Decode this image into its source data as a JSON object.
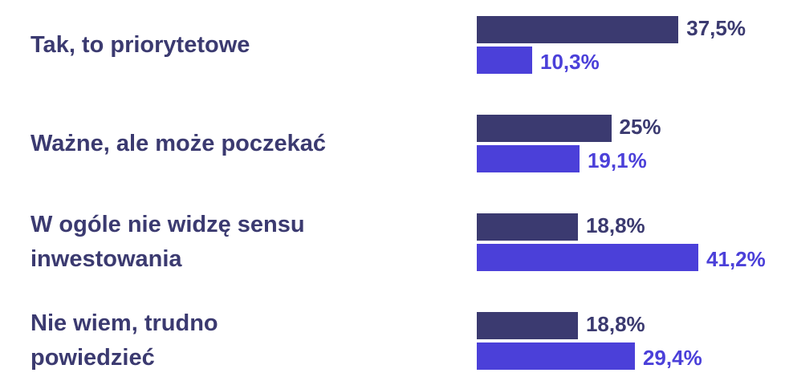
{
  "chart_data": {
    "type": "bar",
    "orientation": "horizontal",
    "categories": [
      "Tak, to priorytetowe",
      "Ważne, ale może poczekać",
      "W ogóle nie widzę sensu inwestowania",
      "Nie wiem, trudno powiedzieć"
    ],
    "series": [
      {
        "color": "#3b3a70",
        "values": [
          37.5,
          25,
          18.8,
          18.8
        ],
        "value_labels": [
          "37,5%",
          "25%",
          "18,8%",
          "18,8%"
        ]
      },
      {
        "color": "#4b40d9",
        "values": [
          10.3,
          19.1,
          41.2,
          29.4
        ],
        "value_labels": [
          "10,3%",
          "19,1%",
          "41,2%",
          "29,4%"
        ]
      }
    ]
  }
}
